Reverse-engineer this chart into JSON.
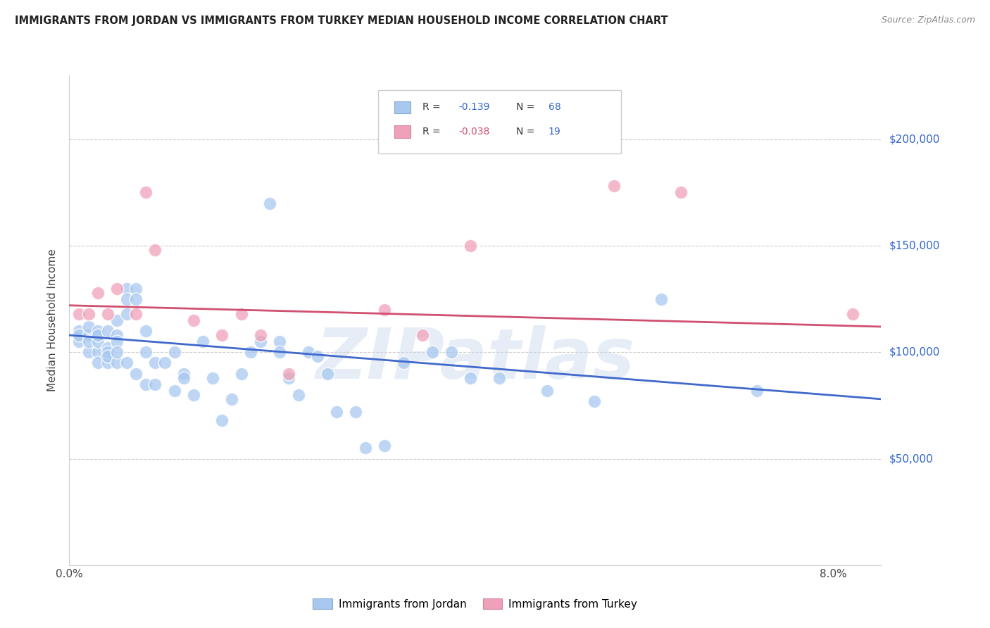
{
  "title": "IMMIGRANTS FROM JORDAN VS IMMIGRANTS FROM TURKEY MEDIAN HOUSEHOLD INCOME CORRELATION CHART",
  "source": "Source: ZipAtlas.com",
  "ylabel": "Median Household Income",
  "ytick_labels": [
    "$50,000",
    "$100,000",
    "$150,000",
    "$200,000"
  ],
  "ytick_values": [
    50000,
    100000,
    150000,
    200000
  ],
  "ylim": [
    0,
    230000
  ],
  "xlim": [
    0.0,
    0.085
  ],
  "jordan_color": "#A8C8F0",
  "turkey_color": "#F0A0B8",
  "jordan_line_color": "#4169CC",
  "turkey_line_color": "#D05070",
  "background_color": "#FFFFFF",
  "watermark": "ZIPatlas",
  "jordan_x": [
    0.001,
    0.001,
    0.001,
    0.002,
    0.002,
    0.002,
    0.002,
    0.003,
    0.003,
    0.003,
    0.003,
    0.003,
    0.004,
    0.004,
    0.004,
    0.004,
    0.004,
    0.005,
    0.005,
    0.005,
    0.005,
    0.005,
    0.006,
    0.006,
    0.006,
    0.006,
    0.007,
    0.007,
    0.007,
    0.008,
    0.008,
    0.008,
    0.009,
    0.009,
    0.01,
    0.011,
    0.011,
    0.012,
    0.012,
    0.013,
    0.014,
    0.015,
    0.016,
    0.017,
    0.018,
    0.019,
    0.02,
    0.021,
    0.022,
    0.022,
    0.023,
    0.024,
    0.025,
    0.026,
    0.027,
    0.028,
    0.03,
    0.031,
    0.033,
    0.035,
    0.038,
    0.04,
    0.042,
    0.045,
    0.05,
    0.055,
    0.062,
    0.072
  ],
  "jordan_y": [
    105000,
    110000,
    108000,
    100000,
    108000,
    112000,
    105000,
    110000,
    100000,
    95000,
    105000,
    108000,
    110000,
    102000,
    95000,
    100000,
    98000,
    115000,
    108000,
    105000,
    95000,
    100000,
    130000,
    125000,
    118000,
    95000,
    130000,
    125000,
    90000,
    110000,
    100000,
    85000,
    95000,
    85000,
    95000,
    100000,
    82000,
    90000,
    88000,
    80000,
    105000,
    88000,
    68000,
    78000,
    90000,
    100000,
    105000,
    170000,
    105000,
    100000,
    88000,
    80000,
    100000,
    98000,
    90000,
    72000,
    72000,
    55000,
    56000,
    95000,
    100000,
    100000,
    88000,
    88000,
    82000,
    77000,
    125000,
    82000
  ],
  "turkey_x": [
    0.001,
    0.002,
    0.003,
    0.004,
    0.005,
    0.007,
    0.008,
    0.009,
    0.013,
    0.016,
    0.018,
    0.02,
    0.023,
    0.033,
    0.037,
    0.042,
    0.057,
    0.064,
    0.082
  ],
  "turkey_y": [
    118000,
    118000,
    128000,
    118000,
    130000,
    118000,
    175000,
    148000,
    115000,
    108000,
    118000,
    108000,
    90000,
    120000,
    108000,
    150000,
    178000,
    175000,
    118000
  ],
  "jordan_trend_x": [
    0.0,
    0.085
  ],
  "jordan_trend_y": [
    108000,
    78000
  ],
  "turkey_trend_x": [
    0.0,
    0.085
  ],
  "turkey_trend_y": [
    122000,
    112000
  ]
}
